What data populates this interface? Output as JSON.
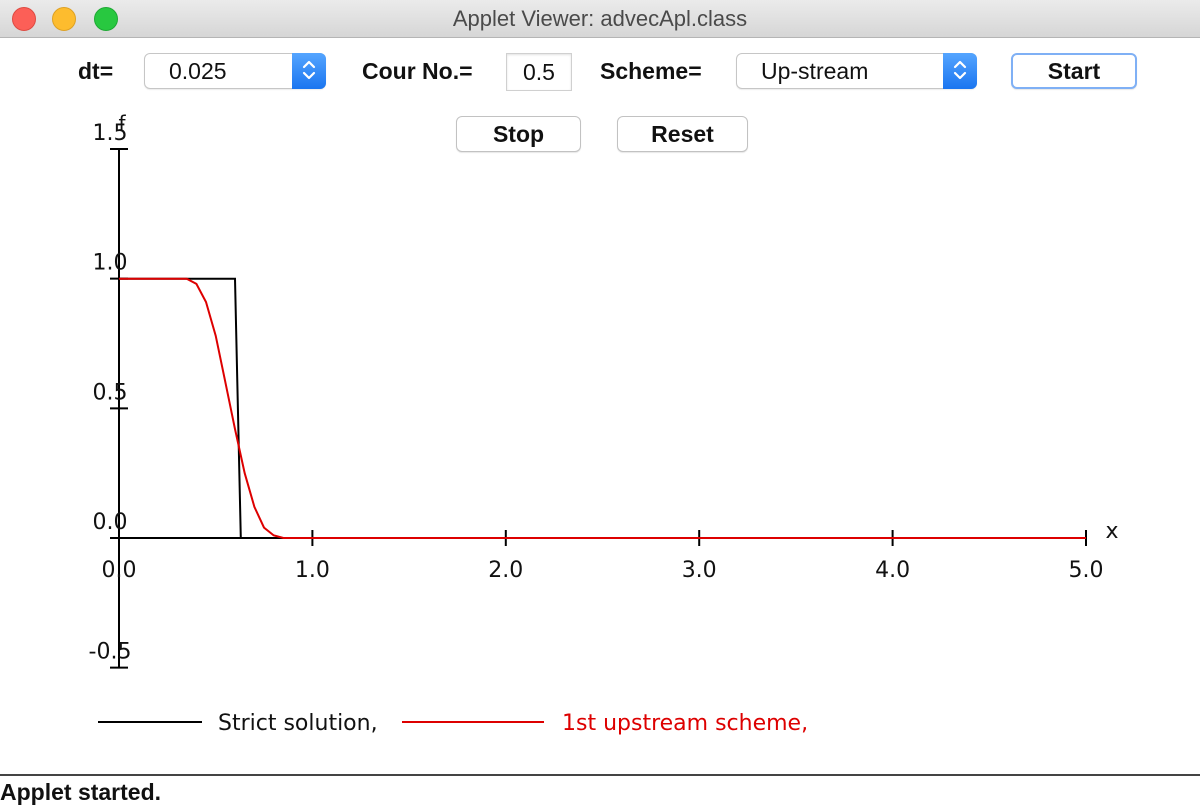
{
  "window": {
    "title": "Applet Viewer: advecApl.class"
  },
  "controls": {
    "dt_label": "dt=",
    "dt_value": "0.025",
    "courant_label": "Cour No.=",
    "courant_value": "0.5",
    "scheme_label": "Scheme=",
    "scheme_value": "Up-stream",
    "start_label": "Start",
    "stop_label": "Stop",
    "reset_label": "Reset"
  },
  "status": {
    "text": "Applet started."
  },
  "chart_data": {
    "type": "line",
    "ylabel": "f",
    "xlabel": "x",
    "xlim": [
      0,
      5
    ],
    "ylim": [
      -0.5,
      1.5
    ],
    "x_ticks": [
      "0.0",
      "1.0",
      "2.0",
      "3.0",
      "4.0",
      "5.0"
    ],
    "y_ticks": [
      "1.5",
      "1.0",
      "0.5",
      "0.0",
      "-0.5"
    ],
    "grid": false,
    "legend_position": "bottom",
    "series": [
      {
        "name": "Strict solution,",
        "color": "#000000",
        "points": [
          [
            0.0,
            1.0
          ],
          [
            0.6,
            1.0
          ],
          [
            0.63,
            0.0
          ],
          [
            5.0,
            0.0
          ]
        ]
      },
      {
        "name": "1st upstream scheme,",
        "color": "#dd0000",
        "points": [
          [
            0.0,
            1.0
          ],
          [
            0.35,
            1.0
          ],
          [
            0.4,
            0.98
          ],
          [
            0.45,
            0.91
          ],
          [
            0.5,
            0.78
          ],
          [
            0.55,
            0.6
          ],
          [
            0.6,
            0.42
          ],
          [
            0.65,
            0.25
          ],
          [
            0.7,
            0.12
          ],
          [
            0.75,
            0.04
          ],
          [
            0.8,
            0.01
          ],
          [
            0.85,
            0.0
          ],
          [
            5.0,
            0.0
          ]
        ]
      }
    ]
  }
}
